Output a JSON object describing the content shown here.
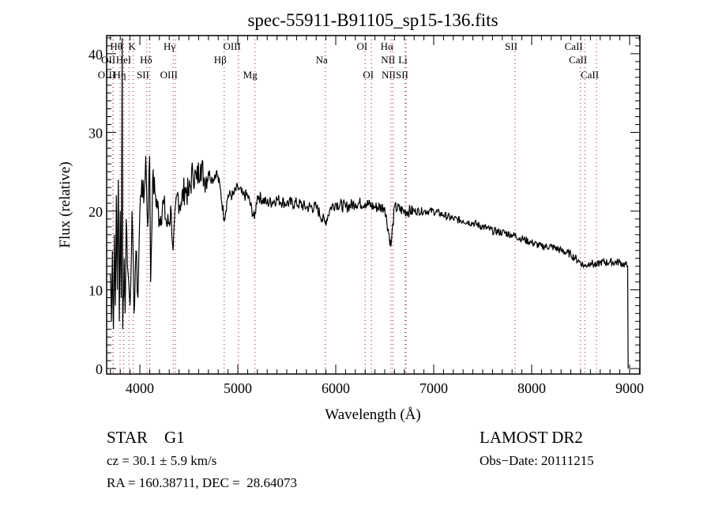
{
  "chart_data": {
    "type": "line",
    "title": "spec-55911-B91105_sp15-136.fits",
    "xlabel": "Wavelength (Å)",
    "ylabel": "Flux (relative)",
    "xlim": [
      3661,
      9105
    ],
    "ylim": [
      -0.7,
      42.3
    ],
    "xticks": [
      4000,
      5000,
      6000,
      7000,
      8000,
      9000
    ],
    "xtick_labels": [
      "4000",
      "5000",
      "6000",
      "7000",
      "8000",
      "9000"
    ],
    "yticks": [
      0,
      10,
      20,
      30,
      40
    ],
    "ytick_labels": [
      "0",
      "10",
      "20",
      "30",
      "40"
    ],
    "grid": false,
    "line_color": "#000000",
    "marker_line_color": "#8b1a1a",
    "series": [
      {
        "name": "spectrum",
        "points": [
          [
            3700,
            12
          ],
          [
            3710,
            6
          ],
          [
            3720,
            15
          ],
          [
            3730,
            5
          ],
          [
            3740,
            17
          ],
          [
            3750,
            8
          ],
          [
            3760,
            22
          ],
          [
            3770,
            10
          ],
          [
            3780,
            24
          ],
          [
            3790,
            6
          ],
          [
            3800,
            20
          ],
          [
            3810,
            9
          ],
          [
            3820,
            42
          ],
          [
            3825,
            5
          ],
          [
            3840,
            14
          ],
          [
            3850,
            7
          ],
          [
            3860,
            19
          ],
          [
            3880,
            12
          ],
          [
            3900,
            8
          ],
          [
            3920,
            20
          ],
          [
            3940,
            7
          ],
          [
            3960,
            15
          ],
          [
            3980,
            9
          ],
          [
            4000,
            20
          ],
          [
            4020,
            24
          ],
          [
            4040,
            21
          ],
          [
            4060,
            27
          ],
          [
            4080,
            18
          ],
          [
            4100,
            27
          ],
          [
            4110,
            11
          ],
          [
            4130,
            24
          ],
          [
            4160,
            22
          ],
          [
            4200,
            19
          ],
          [
            4240,
            21
          ],
          [
            4280,
            18
          ],
          [
            4320,
            20
          ],
          [
            4340,
            15
          ],
          [
            4380,
            22
          ],
          [
            4420,
            21
          ],
          [
            4460,
            23
          ],
          [
            4500,
            22
          ],
          [
            4540,
            25
          ],
          [
            4580,
            24
          ],
          [
            4620,
            26
          ],
          [
            4660,
            24
          ],
          [
            4700,
            25
          ],
          [
            4740,
            24
          ],
          [
            4780,
            25
          ],
          [
            4820,
            23
          ],
          [
            4860,
            19
          ],
          [
            4900,
            22
          ],
          [
            4950,
            22
          ],
          [
            5000,
            23
          ],
          [
            5050,
            22
          ],
          [
            5100,
            22
          ],
          [
            5170,
            19
          ],
          [
            5200,
            22
          ],
          [
            5300,
            21
          ],
          [
            5400,
            21.5
          ],
          [
            5500,
            21
          ],
          [
            5600,
            21
          ],
          [
            5700,
            20.5
          ],
          [
            5800,
            20.5
          ],
          [
            5890,
            18.5
          ],
          [
            5950,
            20.5
          ],
          [
            6000,
            21
          ],
          [
            6100,
            20.5
          ],
          [
            6200,
            21
          ],
          [
            6300,
            21
          ],
          [
            6400,
            20.5
          ],
          [
            6500,
            20.5
          ],
          [
            6563,
            15.5
          ],
          [
            6600,
            20.5
          ],
          [
            6700,
            20
          ],
          [
            6800,
            20
          ],
          [
            6900,
            20
          ],
          [
            7000,
            20
          ],
          [
            7100,
            19.5
          ],
          [
            7200,
            19
          ],
          [
            7300,
            18.8
          ],
          [
            7400,
            18.5
          ],
          [
            7500,
            18
          ],
          [
            7600,
            17.5
          ],
          [
            7700,
            17.3
          ],
          [
            7800,
            17
          ],
          [
            7900,
            16.5
          ],
          [
            8000,
            16
          ],
          [
            8100,
            15.5
          ],
          [
            8200,
            15.5
          ],
          [
            8300,
            15
          ],
          [
            8400,
            14.5
          ],
          [
            8498,
            13.5
          ],
          [
            8542,
            13
          ],
          [
            8600,
            13.5
          ],
          [
            8662,
            13
          ],
          [
            8700,
            13.5
          ],
          [
            8800,
            13.5
          ],
          [
            8900,
            13.5
          ],
          [
            8980,
            13
          ],
          [
            8985,
            0
          ]
        ]
      }
    ],
    "line_markers": [
      {
        "label": "Hθ",
        "wavelength": 3798,
        "row": 1
      },
      {
        "label": "K",
        "wavelength": 3934,
        "row": 1
      },
      {
        "label": "Hγ",
        "wavelength": 4340,
        "row": 1
      },
      {
        "label": "OIII",
        "wavelength": 5007,
        "row": 1
      },
      {
        "label": "OI",
        "wavelength": 6300,
        "row": 1
      },
      {
        "label": "Hα",
        "wavelength": 6563,
        "row": 1
      },
      {
        "label": "SII",
        "wavelength": 7831,
        "row": 1
      },
      {
        "label": "CaII",
        "wavelength": 8498,
        "row": 1
      },
      {
        "label": "OII",
        "wavelength": 3727,
        "row": 2
      },
      {
        "label": "HeI",
        "wavelength": 3889,
        "row": 2
      },
      {
        "label": "Hδ",
        "wavelength": 4102,
        "row": 2
      },
      {
        "label": "Hβ",
        "wavelength": 4861,
        "row": 2
      },
      {
        "label": "Na",
        "wavelength": 5893,
        "row": 2
      },
      {
        "label": "NII",
        "wavelength": 6583,
        "row": 2
      },
      {
        "label": "Li",
        "wavelength": 6708,
        "row": 2
      },
      {
        "label": "CaII",
        "wavelength": 8542,
        "row": 2
      },
      {
        "label": "OIII",
        "wavelength": 3727,
        "row": 3
      },
      {
        "label": "Hη",
        "wavelength": 3835,
        "row": 3
      },
      {
        "label": "SII",
        "wavelength": 4072,
        "row": 3
      },
      {
        "label": "OIII",
        "wavelength": 4363,
        "row": 3
      },
      {
        "label": "Mg",
        "wavelength": 5175,
        "row": 3
      },
      {
        "label": "OI",
        "wavelength": 6364,
        "row": 3
      },
      {
        "label": "NIISII",
        "wavelength": 6717,
        "row": 3
      },
      {
        "label": "CaII",
        "wavelength": 8662,
        "row": 3
      }
    ]
  },
  "info": {
    "class": "STAR    G1",
    "survey": "LAMOST DR2",
    "cz": "cz = 30.1 ± 5.9 km/s",
    "obs_date": "Obs−Date: 20111215",
    "coords": "RA = 160.38711, DEC =  28.64073"
  }
}
